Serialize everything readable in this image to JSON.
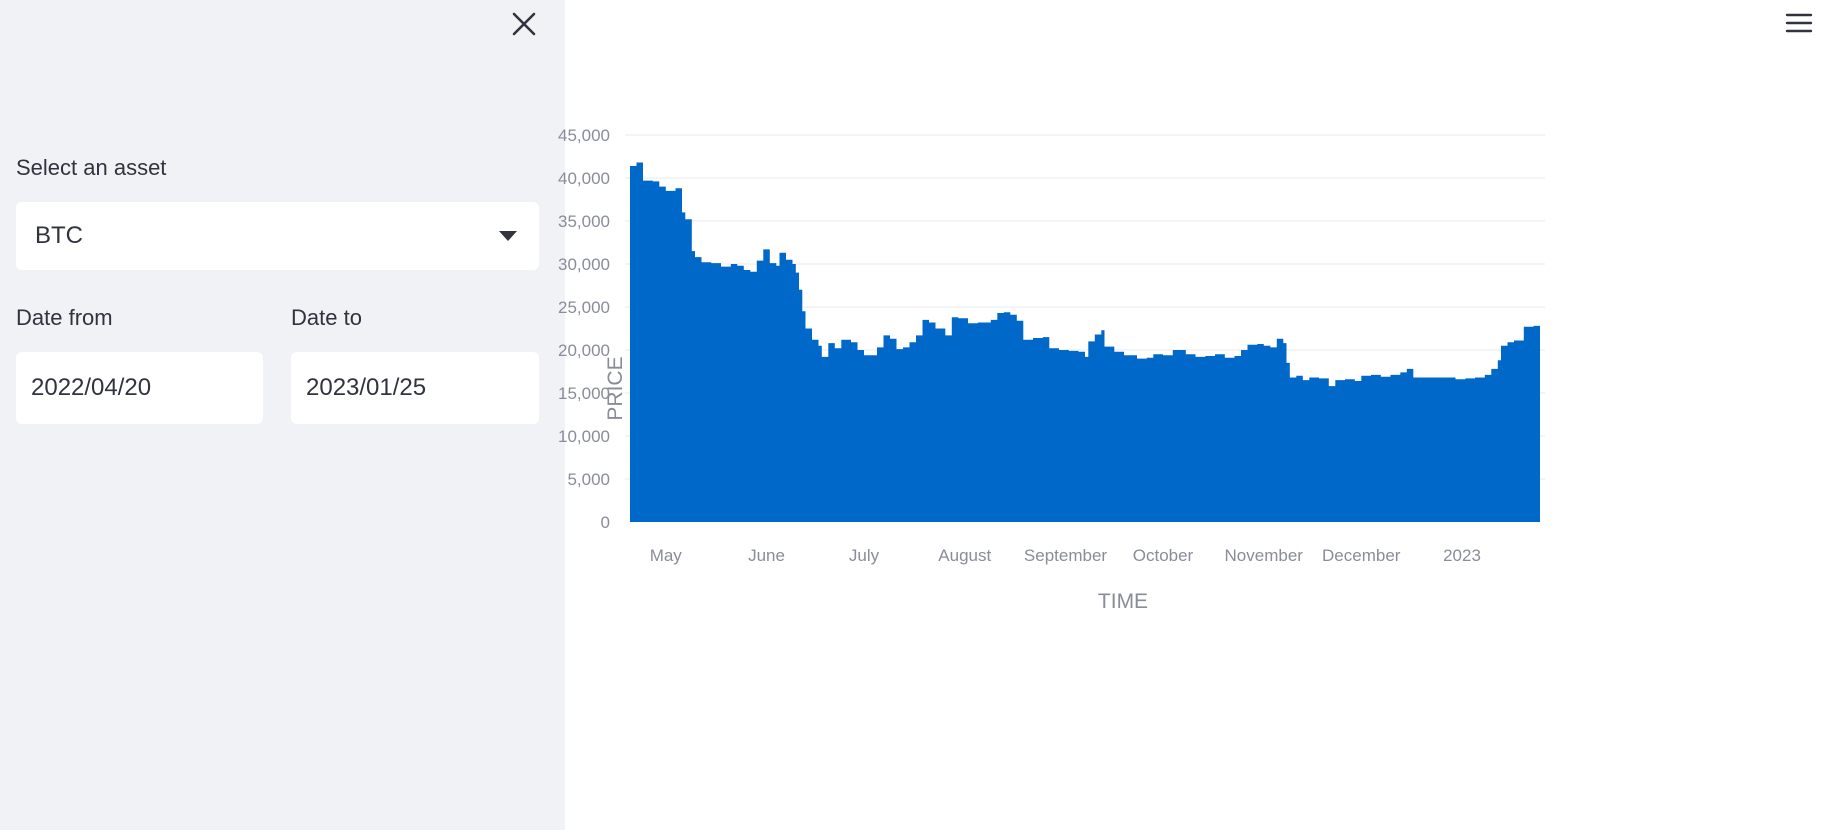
{
  "sidebar": {
    "asset_label": "Select an asset",
    "asset_value": "BTC",
    "date_from_label": "Date from",
    "date_from_value": "2022/04/20",
    "date_to_label": "Date to",
    "date_to_value": "2023/01/25"
  },
  "icons": {
    "close": "close-icon",
    "menu": "hamburger-menu-icon",
    "dropdown": "caret-down-icon"
  },
  "colors": {
    "sidebar_bg": "#f0f2f6",
    "area_fill": "#0068c9",
    "grid": "#eef0f3",
    "axis_text": "#8a8d99"
  },
  "chart_data": {
    "type": "area",
    "xlabel": "TIME",
    "ylabel": "PRICE",
    "ylim": [
      0,
      45000
    ],
    "y_ticks": [
      0,
      5000,
      10000,
      15000,
      20000,
      25000,
      30000,
      35000,
      40000,
      45000
    ],
    "y_tick_labels": [
      "0",
      "5,000",
      "10,000",
      "15,000",
      "20,000",
      "25,000",
      "30,000",
      "35,000",
      "40,000",
      "45,000"
    ],
    "x_range": [
      "2022-04-20",
      "2023-01-25"
    ],
    "x_ticks": [
      {
        "date": "2022-05-01",
        "label": "May"
      },
      {
        "date": "2022-06-01",
        "label": "June"
      },
      {
        "date": "2022-07-01",
        "label": "July"
      },
      {
        "date": "2022-08-01",
        "label": "August"
      },
      {
        "date": "2022-09-01",
        "label": "September"
      },
      {
        "date": "2022-10-01",
        "label": "October"
      },
      {
        "date": "2022-11-01",
        "label": "November"
      },
      {
        "date": "2022-12-01",
        "label": "December"
      },
      {
        "date": "2023-01-01",
        "label": "2023"
      }
    ],
    "grid": true,
    "series": [
      {
        "points": [
          [
            "2022-04-20",
            41400
          ],
          [
            "2022-04-22",
            41800
          ],
          [
            "2022-04-24",
            39700
          ],
          [
            "2022-04-27",
            39600
          ],
          [
            "2022-04-29",
            39000
          ],
          [
            "2022-05-01",
            38500
          ],
          [
            "2022-05-04",
            38800
          ],
          [
            "2022-05-06",
            36000
          ],
          [
            "2022-05-07",
            35200
          ],
          [
            "2022-05-09",
            31500
          ],
          [
            "2022-05-10",
            30800
          ],
          [
            "2022-05-12",
            30200
          ],
          [
            "2022-05-15",
            30100
          ],
          [
            "2022-05-18",
            29700
          ],
          [
            "2022-05-21",
            30000
          ],
          [
            "2022-05-23",
            29800
          ],
          [
            "2022-05-25",
            29300
          ],
          [
            "2022-05-27",
            29100
          ],
          [
            "2022-05-29",
            30400
          ],
          [
            "2022-05-31",
            31700
          ],
          [
            "2022-06-02",
            30100
          ],
          [
            "2022-06-04",
            29800
          ],
          [
            "2022-06-05",
            31300
          ],
          [
            "2022-06-07",
            30500
          ],
          [
            "2022-06-09",
            30000
          ],
          [
            "2022-06-10",
            29000
          ],
          [
            "2022-06-11",
            27000
          ],
          [
            "2022-06-12",
            24500
          ],
          [
            "2022-06-13",
            22500
          ],
          [
            "2022-06-15",
            21200
          ],
          [
            "2022-06-17",
            20500
          ],
          [
            "2022-06-18",
            19200
          ],
          [
            "2022-06-20",
            20800
          ],
          [
            "2022-06-22",
            20200
          ],
          [
            "2022-06-24",
            21200
          ],
          [
            "2022-06-27",
            20900
          ],
          [
            "2022-06-29",
            20000
          ],
          [
            "2022-07-01",
            19400
          ],
          [
            "2022-07-03",
            19400
          ],
          [
            "2022-07-05",
            20300
          ],
          [
            "2022-07-07",
            21700
          ],
          [
            "2022-07-09",
            21300
          ],
          [
            "2022-07-11",
            20100
          ],
          [
            "2022-07-13",
            20300
          ],
          [
            "2022-07-15",
            20900
          ],
          [
            "2022-07-17",
            21700
          ],
          [
            "2022-07-19",
            23500
          ],
          [
            "2022-07-21",
            23200
          ],
          [
            "2022-07-23",
            22500
          ],
          [
            "2022-07-26",
            21700
          ],
          [
            "2022-07-28",
            23800
          ],
          [
            "2022-07-30",
            23700
          ],
          [
            "2022-08-02",
            23100
          ],
          [
            "2022-08-05",
            23200
          ],
          [
            "2022-08-07",
            23200
          ],
          [
            "2022-08-09",
            23500
          ],
          [
            "2022-08-11",
            24300
          ],
          [
            "2022-08-13",
            24400
          ],
          [
            "2022-08-15",
            24100
          ],
          [
            "2022-08-17",
            23400
          ],
          [
            "2022-08-19",
            21200
          ],
          [
            "2022-08-22",
            21400
          ],
          [
            "2022-08-25",
            21500
          ],
          [
            "2022-08-27",
            20200
          ],
          [
            "2022-08-30",
            20000
          ],
          [
            "2022-09-02",
            19900
          ],
          [
            "2022-09-05",
            19800
          ],
          [
            "2022-09-07",
            19200
          ],
          [
            "2022-09-08",
            21000
          ],
          [
            "2022-09-10",
            21800
          ],
          [
            "2022-09-12",
            22300
          ],
          [
            "2022-09-13",
            20400
          ],
          [
            "2022-09-16",
            19800
          ],
          [
            "2022-09-19",
            19400
          ],
          [
            "2022-09-23",
            19000
          ],
          [
            "2022-09-26",
            19100
          ],
          [
            "2022-09-28",
            19500
          ],
          [
            "2022-10-01",
            19400
          ],
          [
            "2022-10-04",
            20000
          ],
          [
            "2022-10-06",
            20000
          ],
          [
            "2022-10-08",
            19500
          ],
          [
            "2022-10-11",
            19200
          ],
          [
            "2022-10-14",
            19300
          ],
          [
            "2022-10-17",
            19500
          ],
          [
            "2022-10-20",
            19100
          ],
          [
            "2022-10-23",
            19300
          ],
          [
            "2022-10-25",
            20000
          ],
          [
            "2022-10-27",
            20600
          ],
          [
            "2022-10-30",
            20700
          ],
          [
            "2022-11-01",
            20500
          ],
          [
            "2022-11-03",
            20300
          ],
          [
            "2022-11-05",
            21300
          ],
          [
            "2022-11-07",
            20800
          ],
          [
            "2022-11-08",
            18500
          ],
          [
            "2022-11-09",
            16800
          ],
          [
            "2022-11-11",
            17000
          ],
          [
            "2022-11-13",
            16500
          ],
          [
            "2022-11-15",
            16800
          ],
          [
            "2022-11-18",
            16700
          ],
          [
            "2022-11-21",
            15800
          ],
          [
            "2022-11-23",
            16500
          ],
          [
            "2022-11-26",
            16600
          ],
          [
            "2022-11-29",
            16400
          ],
          [
            "2022-12-01",
            17000
          ],
          [
            "2022-12-04",
            17100
          ],
          [
            "2022-12-07",
            16900
          ],
          [
            "2022-12-10",
            17100
          ],
          [
            "2022-12-13",
            17400
          ],
          [
            "2022-12-15",
            17800
          ],
          [
            "2022-12-17",
            16800
          ],
          [
            "2022-12-20",
            16800
          ],
          [
            "2022-12-25",
            16800
          ],
          [
            "2022-12-30",
            16600
          ],
          [
            "2023-01-02",
            16700
          ],
          [
            "2023-01-05",
            16800
          ],
          [
            "2023-01-08",
            17100
          ],
          [
            "2023-01-10",
            17800
          ],
          [
            "2023-01-12",
            18800
          ],
          [
            "2023-01-13",
            20500
          ],
          [
            "2023-01-15",
            20900
          ],
          [
            "2023-01-17",
            21100
          ],
          [
            "2023-01-19",
            21100
          ],
          [
            "2023-01-20",
            22700
          ],
          [
            "2023-01-23",
            22800
          ],
          [
            "2023-01-25",
            23000
          ]
        ]
      }
    ]
  }
}
